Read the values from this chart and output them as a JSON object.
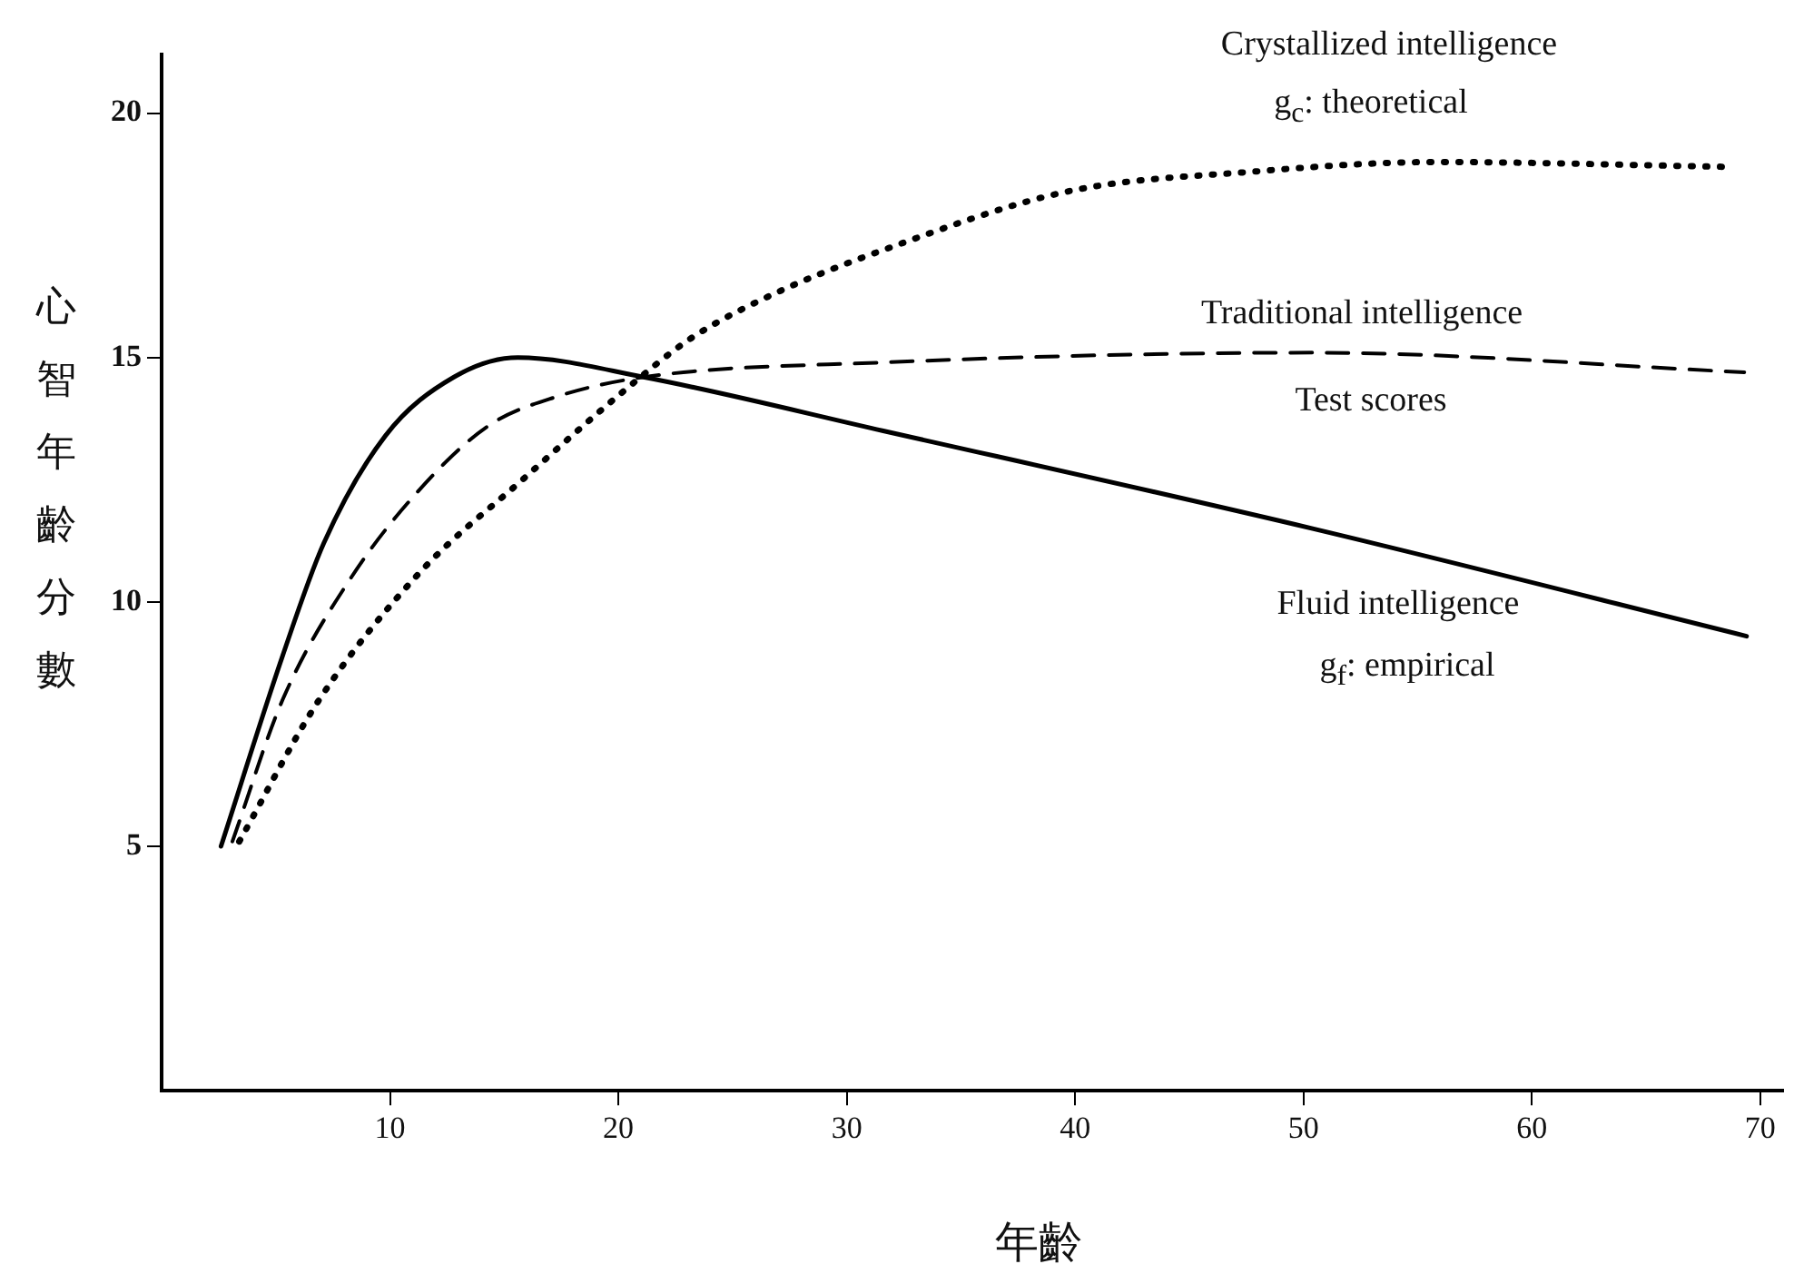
{
  "chart_data": {
    "type": "line",
    "xlabel": "年齡",
    "ylabel": "心智年齡分數",
    "xlim": [
      0,
      71
    ],
    "ylim": [
      0,
      21.2
    ],
    "xticks": [
      10,
      20,
      30,
      40,
      50,
      60,
      70
    ],
    "yticks": [
      5,
      10,
      15,
      20
    ],
    "grid": false,
    "legend": false,
    "marker": "none",
    "series": [
      {
        "name": "Crystallized intelligence",
        "color": "#000000",
        "line_style": "dotted",
        "x": [
          3.4,
          6.9,
          11.3,
          15.8,
          20.2,
          23.2,
          26.8,
          31.6,
          39.7,
          47.7,
          55.8,
          68.7
        ],
        "values": [
          5.1,
          8.0,
          10.6,
          12.5,
          14.3,
          15.4,
          16.3,
          17.2,
          18.4,
          18.8,
          19.0,
          18.9
        ]
      },
      {
        "name": "Traditional intelligence",
        "color": "#000000",
        "line_style": "dashed",
        "x": [
          3.1,
          5.3,
          8.3,
          11.3,
          14.3,
          17.3,
          21.1,
          31.6,
          50.4,
          69.3
        ],
        "values": [
          5.1,
          8.0,
          10.5,
          12.3,
          13.6,
          14.2,
          14.6,
          14.9,
          15.1,
          14.7
        ]
      },
      {
        "name": "Fluid intelligence",
        "color": "#000000",
        "line_style": "solid",
        "x": [
          2.6,
          5.3,
          7.1,
          9.8,
          12.8,
          15.6,
          21.1,
          31.6,
          50.4,
          69.4
        ],
        "values": [
          5.0,
          8.9,
          11.2,
          13.4,
          14.6,
          15.0,
          14.6,
          13.5,
          11.5,
          9.3
        ]
      }
    ],
    "annotations": [
      "g$_{c}$: theoretical",
      "Test scores",
      "g$_{f}$: empirical"
    ]
  }
}
